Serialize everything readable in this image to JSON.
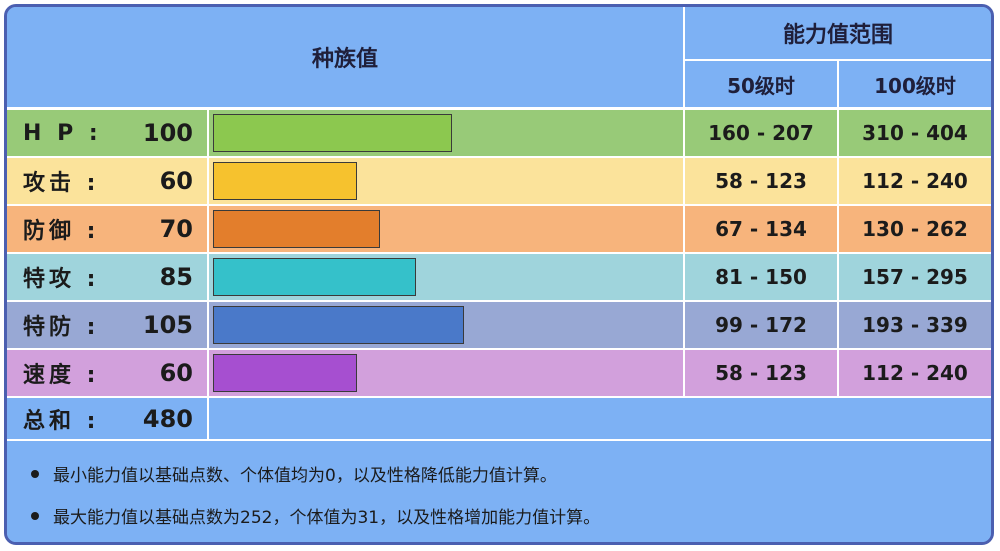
{
  "header": {
    "base_stats_label": "种族值",
    "stat_range_label": "能力值范围",
    "level50_label": "50级时",
    "level100_label": "100级时"
  },
  "stats": [
    {
      "name": "H P :",
      "value": "100",
      "base": 100,
      "range50": "160 - 207",
      "range100": "310 - 404",
      "row_color": "#98ca78",
      "bar_color": "#8cc84f"
    },
    {
      "name": "攻击 :",
      "value": "60",
      "base": 60,
      "range50": "58 - 123",
      "range100": "112 - 240",
      "row_color": "#fbe39b",
      "bar_color": "#f6c22e"
    },
    {
      "name": "防御 :",
      "value": "70",
      "base": 70,
      "range50": "67 - 134",
      "range100": "130 - 262",
      "row_color": "#f7b47c",
      "bar_color": "#e37e2c"
    },
    {
      "name": "特攻 :",
      "value": "85",
      "base": 85,
      "range50": "81 - 150",
      "range100": "157 - 295",
      "row_color": "#9fd4dc",
      "bar_color": "#35c1ca"
    },
    {
      "name": "特防 :",
      "value": "105",
      "base": 105,
      "range50": "99 - 172",
      "range100": "193 - 339",
      "row_color": "#98a8d4",
      "bar_color": "#4a79c9"
    },
    {
      "name": "速度 :",
      "value": "60",
      "base": 60,
      "range50": "58 - 123",
      "range100": "112 - 240",
      "row_color": "#d2a0dc",
      "bar_color": "#a64fd0"
    }
  ],
  "total": {
    "name": "总和 :",
    "value": "480"
  },
  "notes": [
    "最小能力值以基础点数、个体值均为0，以及性格降低能力值计算。",
    "最大能力值以基础点数为252，个体值为31，以及性格增加能力值计算。"
  ]
}
